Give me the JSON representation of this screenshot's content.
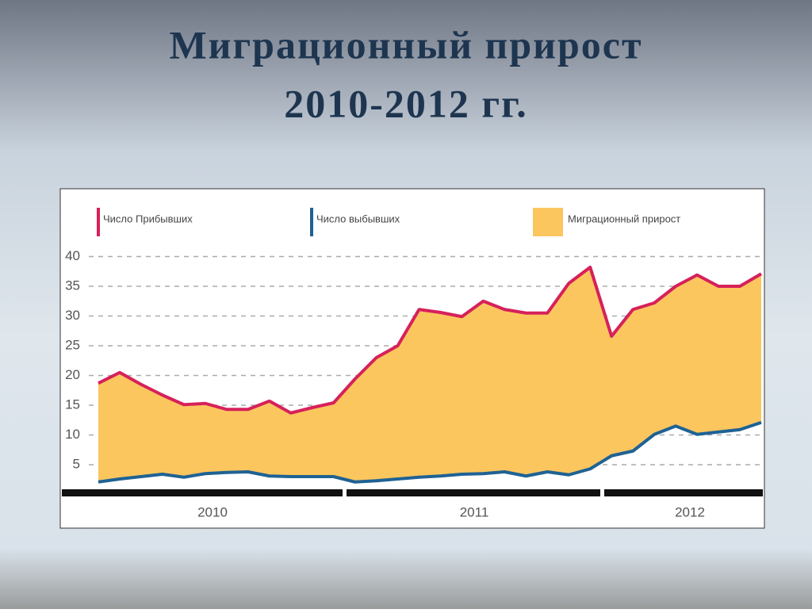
{
  "chart_data": {
    "type": "line",
    "title": "Миграционный прирост",
    "subtitle": "2010-2012 гг.",
    "categories": [
      null,
      null,
      null,
      null,
      null,
      null,
      null,
      null,
      null,
      null,
      null,
      null,
      null,
      null,
      null,
      null,
      null,
      null,
      null,
      null,
      null,
      null,
      null,
      null,
      null,
      null,
      null,
      null,
      null,
      null,
      null,
      null
    ],
    "series": [
      {
        "name": "Число Прибывших",
        "color": "#d6215a",
        "values": [
          18.7,
          20.5,
          18.5,
          16.7,
          15.1,
          15.3,
          14.3,
          14.3,
          15.7,
          13.7,
          14.6,
          15.4,
          19.4,
          23.0,
          25.0,
          31.1,
          30.6,
          29.9,
          32.5,
          31.1,
          30.5,
          30.5,
          35.5,
          38.2,
          26.6,
          31.1,
          32.2,
          35.0,
          36.9,
          35.0,
          35.0,
          37.1
        ]
      },
      {
        "name": "Число выбывших",
        "color": "#1f6294",
        "values": [
          2.1,
          2.6,
          3.0,
          3.4,
          2.9,
          3.5,
          3.7,
          3.8,
          3.1,
          3.0,
          3.0,
          3.0,
          2.1,
          2.3,
          2.6,
          2.9,
          3.1,
          3.4,
          3.5,
          3.8,
          3.1,
          3.8,
          3.3,
          4.3,
          6.5,
          7.3,
          10.1,
          11.5,
          10.1,
          10.5,
          10.9,
          12.1
        ]
      }
    ],
    "fill": {
      "name": "Миграционный прирост",
      "color": "#fcc65f"
    },
    "year_labels": [
      "2010",
      "2011",
      "2012"
    ],
    "ylim": [
      0,
      40
    ],
    "yticks": [
      5,
      10,
      15,
      20,
      25,
      30,
      35,
      40
    ],
    "grid": true
  }
}
